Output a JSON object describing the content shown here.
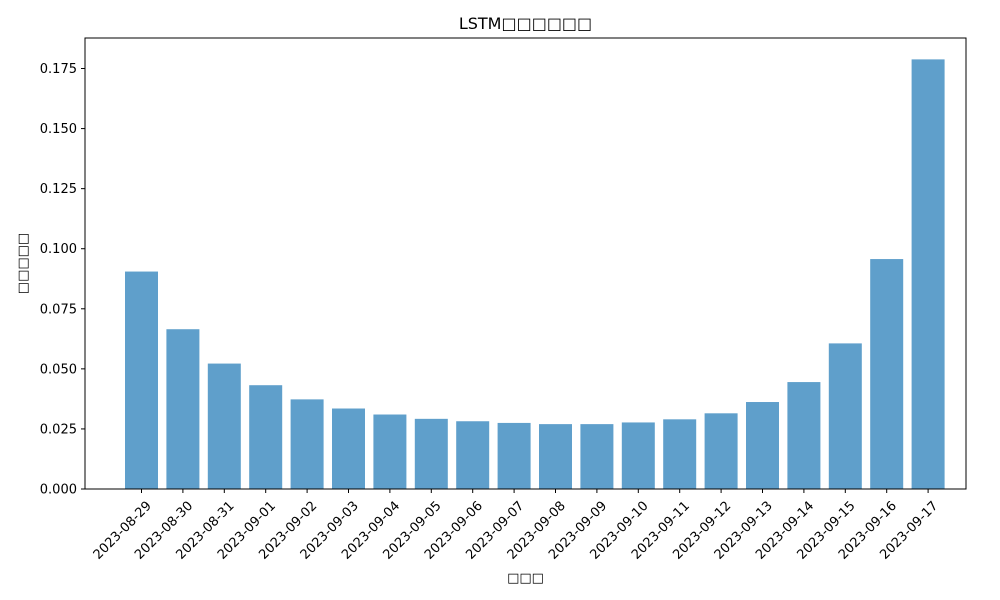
{
  "chart_data": {
    "type": "bar",
    "title": "LSTM□□□□□□",
    "xlabel": "□□□",
    "ylabel": "□□□□□",
    "categories": [
      "2023-08-29",
      "2023-08-30",
      "2023-08-31",
      "2023-09-01",
      "2023-09-02",
      "2023-09-03",
      "2023-09-04",
      "2023-09-05",
      "2023-09-06",
      "2023-09-07",
      "2023-09-08",
      "2023-09-09",
      "2023-09-10",
      "2023-09-11",
      "2023-09-12",
      "2023-09-13",
      "2023-09-14",
      "2023-09-15",
      "2023-09-16",
      "2023-09-17"
    ],
    "values": [
      0.0905,
      0.0665,
      0.0522,
      0.0432,
      0.0373,
      0.0335,
      0.031,
      0.0292,
      0.0282,
      0.0275,
      0.027,
      0.027,
      0.0277,
      0.029,
      0.0315,
      0.0362,
      0.0445,
      0.0606,
      0.0957,
      0.1788
    ],
    "yticks": [
      "0.000",
      "0.025",
      "0.050",
      "0.075",
      "0.100",
      "0.125",
      "0.150",
      "0.175"
    ],
    "ylim": [
      0,
      0.1877
    ],
    "grid": false,
    "bar_color": "#5f9fcb"
  }
}
